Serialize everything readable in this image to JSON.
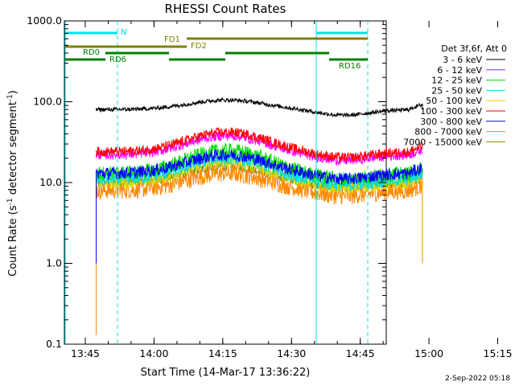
{
  "chart_data": {
    "type": "line",
    "title": "RHESSI Count Rates",
    "xlabel": "Start Time (14-Mar-17 13:36:22)",
    "ylabel_main": "Count Rate (s",
    "ylabel_sup": "-1",
    "ylabel_mid": " detector segment",
    "ylabel_sup2": "-1",
    "ylabel_end": ")",
    "y_scale": "log",
    "ylim": [
      0.1,
      1000
    ],
    "xlim_minutes": [
      "13:36:22",
      "15:18:00"
    ],
    "x_tick_labels": [
      "13:45",
      "14:00",
      "14:15",
      "14:30",
      "14:45",
      "15:00",
      "15:15"
    ],
    "y_tick_labels": [
      "0.1",
      "1.0",
      "10.0",
      "100.0",
      "1000.0"
    ],
    "legend_header": "Det 3f,6f, Att 0",
    "series": [
      {
        "name": "3 - 6 keV",
        "color": "#000000",
        "start_value": 80,
        "peak_value": 105,
        "end_value": 80
      },
      {
        "name": "6 - 12 keV",
        "color": "#ff00ff",
        "start_value": 22,
        "peak_value": 38,
        "end_value": 22
      },
      {
        "name": "12 - 25 keV",
        "color": "#00dd00",
        "start_value": 13,
        "peak_value": 25,
        "end_value": 13
      },
      {
        "name": "25 - 50 keV",
        "color": "#00dddd",
        "start_value": 11,
        "peak_value": 20,
        "end_value": 10
      },
      {
        "name": "50 - 100 keV",
        "color": "#dddd00",
        "start_value": 10,
        "peak_value": 18,
        "end_value": 10
      },
      {
        "name": "100 - 300 keV",
        "color": "#ff0000",
        "start_value": 24,
        "peak_value": 42,
        "end_value": 26
      },
      {
        "name": "300 - 800 keV",
        "color": "#0000ff",
        "start_value": 13,
        "peak_value": 22,
        "end_value": 13
      },
      {
        "name": "800 - 7000 keV",
        "color": "#ff8800",
        "start_value": 8,
        "peak_value": 13,
        "end_value": 8
      },
      {
        "name": "7000 - 15000 keV",
        "color": "#888800",
        "start_value": 10,
        "peak_value": 16,
        "end_value": 10
      }
    ],
    "flags": {
      "N_label": "N",
      "FD1_label": "FD1",
      "FD2_label": "FD2",
      "RD0_label": "RD0",
      "RD6_label": "RD6",
      "RD16_label": "RD16"
    },
    "timestamp": "2-Sep-2022 05:18"
  }
}
